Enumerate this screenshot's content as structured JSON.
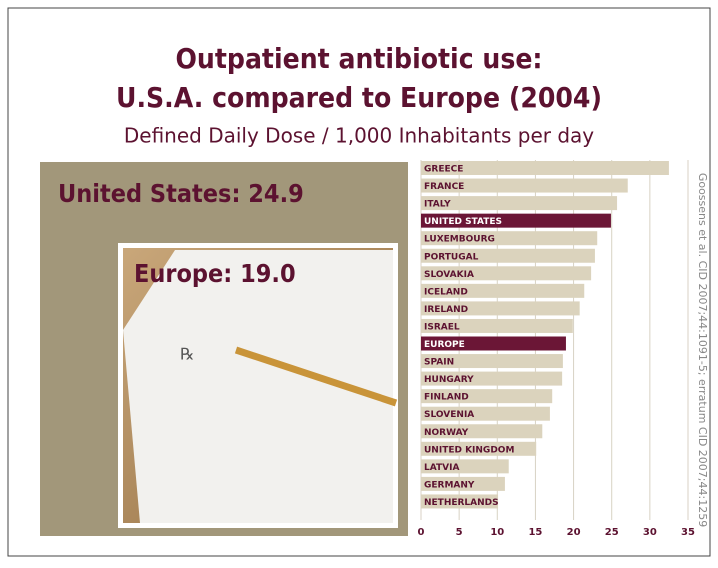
{
  "chart_data": {
    "type": "barh",
    "title": "Outpatient antibiotic use:",
    "title_line2": "U.S.A. compared to Europe (2004)",
    "subtitle": "Defined Daily Dose / 1,000 Inhabitants per day",
    "annotations": [
      "United States: 24.9",
      "Europe: 19.0"
    ],
    "source": "Goossens et al. CID 2007;44:1091-5; erratum CID 2007;44:1259",
    "categories": [
      "GREECE",
      "FRANCE",
      "ITALY",
      "UNITED STATES",
      "LUXEMBOURG",
      "PORTUGAL",
      "SLOVAKIA",
      "ICELAND",
      "IRELAND",
      "ISRAEL",
      "EUROPE",
      "SPAIN",
      "HUNGARY",
      "FINLAND",
      "SLOVENIA",
      "NORWAY",
      "UNITED KINGDOM",
      "LATVIA",
      "GERMANY",
      "NETHERLANDS"
    ],
    "values": [
      32.5,
      27.1,
      25.7,
      24.9,
      23.1,
      22.8,
      22.3,
      21.4,
      20.8,
      19.9,
      19.0,
      18.6,
      18.5,
      17.2,
      16.9,
      15.9,
      15.1,
      11.5,
      11.0,
      10.1
    ],
    "colors": [
      "#dbd3bd",
      "#dbd3bd",
      "#dbd3bd",
      "#6b1636",
      "#dbd3bd",
      "#dbd3bd",
      "#dbd3bd",
      "#dbd3bd",
      "#dbd3bd",
      "#dbd3bd",
      "#6b1636",
      "#dbd3bd",
      "#dbd3bd",
      "#dbd3bd",
      "#dbd3bd",
      "#dbd3bd",
      "#dbd3bd",
      "#dbd3bd",
      "#dbd3bd",
      "#dbd3bd"
    ],
    "xlim": [
      0,
      35
    ],
    "xticks": [
      0,
      5,
      10,
      15,
      20,
      25,
      30,
      35
    ],
    "grid": true
  }
}
